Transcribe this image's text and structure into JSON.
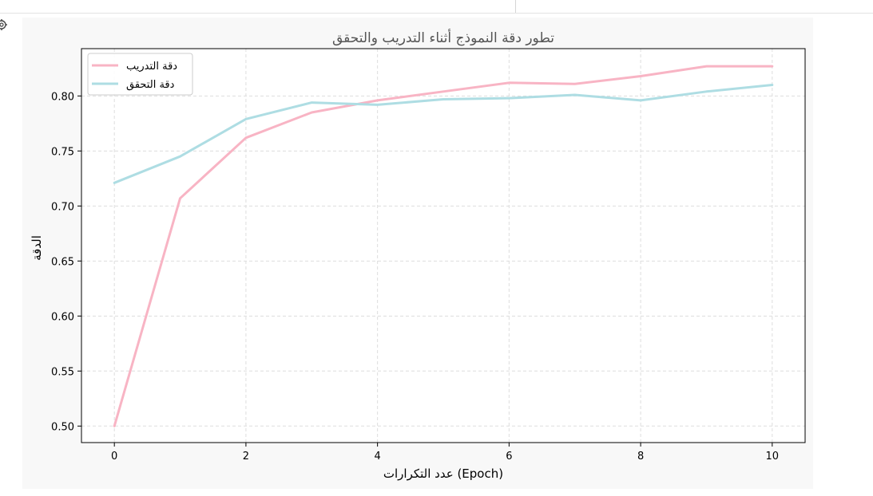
{
  "colors": {
    "train": "#f8b4c4",
    "validation": "#aedde3",
    "grid": "#dddddd",
    "title": "#555555",
    "figure_bg": "#f8f8f8"
  },
  "icons": {
    "side": "settings-icon"
  },
  "chart_data": {
    "type": "line",
    "title": "تطور دقة النموذج أثناء التدريب والتحقق",
    "xlabel": "عدد التكرارات (Epoch)",
    "ylabel": "الدقة",
    "xlim": [
      -0.5,
      10.5
    ],
    "ylim": [
      0.485,
      0.843
    ],
    "xticks": [
      0,
      2,
      4,
      6,
      8,
      10
    ],
    "yticks": [
      0.5,
      0.55,
      0.6,
      0.65,
      0.7,
      0.75,
      0.8
    ],
    "ytick_labels": [
      "0.50",
      "0.55",
      "0.60",
      "0.65",
      "0.70",
      "0.75",
      "0.80"
    ],
    "grid": true,
    "legend": "top-left",
    "x": [
      0,
      1,
      2,
      3,
      4,
      5,
      6,
      7,
      8,
      9,
      10
    ],
    "series": [
      {
        "name": "دقة التدريب",
        "color": "#f8b4c4",
        "values": [
          0.5,
          0.707,
          0.762,
          0.785,
          0.796,
          0.804,
          0.812,
          0.811,
          0.818,
          0.827,
          0.827
        ]
      },
      {
        "name": "دقة التحقق",
        "color": "#aedde3",
        "values": [
          0.721,
          0.745,
          0.779,
          0.794,
          0.792,
          0.797,
          0.798,
          0.801,
          0.796,
          0.804,
          0.81
        ]
      }
    ]
  }
}
